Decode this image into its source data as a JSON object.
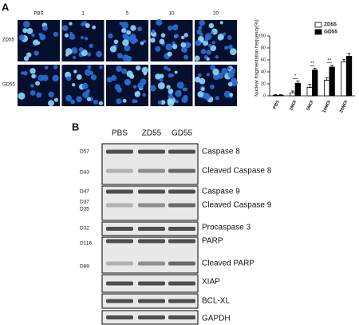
{
  "panel_a": {
    "label": "A",
    "columns": [
      "PBS",
      "1",
      "5",
      "10",
      "20"
    ],
    "rows": [
      "ZD55",
      "GD55"
    ]
  },
  "chart_data": {
    "type": "bar",
    "y_label": "Nuclear fragmentation frequency(%)",
    "categories": [
      "PBS",
      "1MOI",
      "5MOI",
      "10MOI",
      "20MOI"
    ],
    "series": [
      {
        "name": "ZD55",
        "color": "#ffffff",
        "values": [
          1,
          5,
          14,
          26,
          57
        ],
        "errors": [
          1,
          3,
          5,
          4,
          4
        ]
      },
      {
        "name": "GD55",
        "color": "#000000",
        "values": [
          1,
          21,
          43,
          48,
          66
        ],
        "errors": [
          1,
          4,
          3,
          3,
          5
        ]
      }
    ],
    "ylim": [
      0,
      100
    ],
    "yticks": [
      0,
      20,
      40,
      60,
      80,
      100
    ],
    "legend": "upper-right",
    "annotations": [
      "*",
      "**",
      "**"
    ]
  },
  "panel_b": {
    "label": "B",
    "columns": [
      "PBS",
      "ZD55",
      "GD55"
    ],
    "blots": [
      {
        "markers": [
          "D57",
          "D43"
        ],
        "proteins": [
          "Caspase 8",
          "Cleaved Caspase 8"
        ]
      },
      {
        "markers": [
          "D47",
          "D37",
          "D35"
        ],
        "proteins": [
          "Caspase 9",
          "Cleaved Caspase 9"
        ]
      },
      {
        "markers": [
          "D32"
        ],
        "proteins": [
          "Procaspase 3"
        ]
      },
      {
        "markers": [
          "D116",
          "D89"
        ],
        "proteins": [
          "PARP",
          "Cleaved PARP"
        ]
      },
      {
        "markers": [],
        "proteins": [
          "XIAP"
        ]
      },
      {
        "markers": [],
        "proteins": [
          "BCL-XL"
        ]
      },
      {
        "markers": [],
        "proteins": [
          "GAPDH"
        ]
      }
    ]
  }
}
